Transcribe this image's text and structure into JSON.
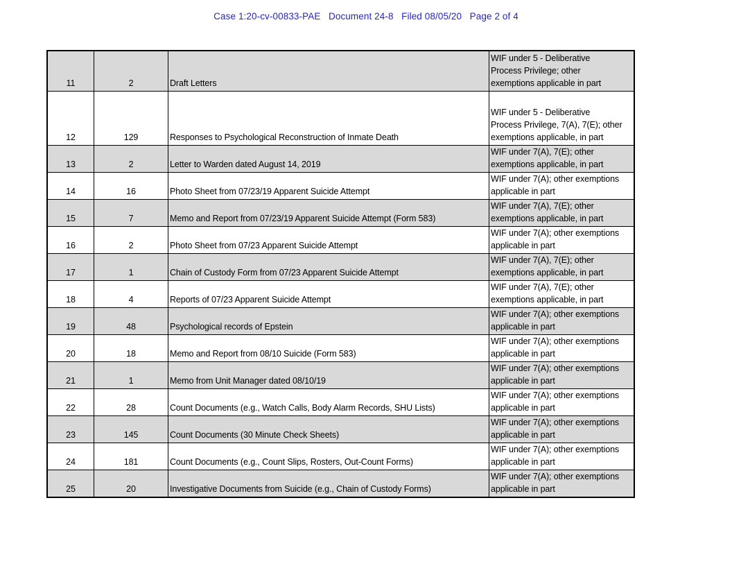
{
  "header": {
    "case_stamp": "Case 1:20-cv-00833-PAE   Document 24-8   Filed 08/05/20   Page 2 of 4",
    "stamp_color": "#2424cc"
  },
  "table": {
    "colors": {
      "shaded_row_bg": "#d9d9d9",
      "border": "#000000"
    },
    "rows": [
      {
        "num": "11",
        "pages": "2",
        "description": "Draft Letters",
        "exemption": "WIF under 5 - Deliberative\nProcess Privilege; other\nexemptions applicable in part"
      },
      {
        "num": "12",
        "pages": "129",
        "description": "Responses to Psychological Reconstruction of Inmate Death",
        "exemption": "WIF under 5 - Deliberative\nProcess Privilege, 7(A), 7(E); other\nexemptions applicable, in part"
      },
      {
        "num": "13",
        "pages": "2",
        "description": "Letter to Warden dated August 14, 2019",
        "exemption": "WIF under 7(A), 7(E); other\nexemptions applicable, in part"
      },
      {
        "num": "14",
        "pages": "16",
        "description": "Photo Sheet from 07/23/19 Apparent Suicide Attempt",
        "exemption": "WIF under 7(A); other exemptions\napplicable in part"
      },
      {
        "num": "15",
        "pages": "7",
        "description": "Memo and Report from 07/23/19 Apparent Suicide Attempt (Form 583)",
        "exemption": "WIF under 7(A), 7(E); other\nexemptions applicable, in part"
      },
      {
        "num": "16",
        "pages": "2",
        "description": "Photo Sheet from 07/23 Apparent Suicide Attempt",
        "exemption": "WIF under 7(A); other exemptions\napplicable in part"
      },
      {
        "num": "17",
        "pages": "1",
        "description": "Chain of Custody Form from 07/23 Apparent Suicide Attempt",
        "exemption": "WIF under 7(A), 7(E); other\nexemptions applicable, in part"
      },
      {
        "num": "18",
        "pages": "4",
        "description": "Reports of 07/23 Apparent Suicide Attempt",
        "exemption": "WIF under 7(A), 7(E); other\nexemptions applicable, in part"
      },
      {
        "num": "19",
        "pages": "48",
        "description": "Psychological records of Epstein",
        "exemption": "WIF under 7(A); other exemptions\napplicable in part"
      },
      {
        "num": "20",
        "pages": "18",
        "description": "Memo and Report from 08/10 Suicide (Form 583)",
        "exemption": "WIF under 7(A); other exemptions\napplicable in part"
      },
      {
        "num": "21",
        "pages": "1",
        "description": "Memo from Unit Manager dated 08/10/19",
        "exemption": "WIF under 7(A); other exemptions\napplicable in part"
      },
      {
        "num": "22",
        "pages": "28",
        "description": "Count Documents (e.g., Watch Calls, Body Alarm Records, SHU Lists)",
        "exemption": "WIF under 7(A); other exemptions\napplicable in part"
      },
      {
        "num": "23",
        "pages": "145",
        "description": "Count Documents (30 Minute Check Sheets)",
        "exemption": "WIF under 7(A); other exemptions\napplicable in part"
      },
      {
        "num": "24",
        "pages": "181",
        "description": "Count Documents (e.g., Count Slips, Rosters, Out-Count Forms)",
        "exemption": "WIF under 7(A); other exemptions\napplicable in part"
      },
      {
        "num": "25",
        "pages": "20",
        "description": "Investigative Documents from Suicide (e.g., Chain of Custody Forms)",
        "exemption": "WIF under 7(A); other exemptions\napplicable in part"
      }
    ]
  }
}
